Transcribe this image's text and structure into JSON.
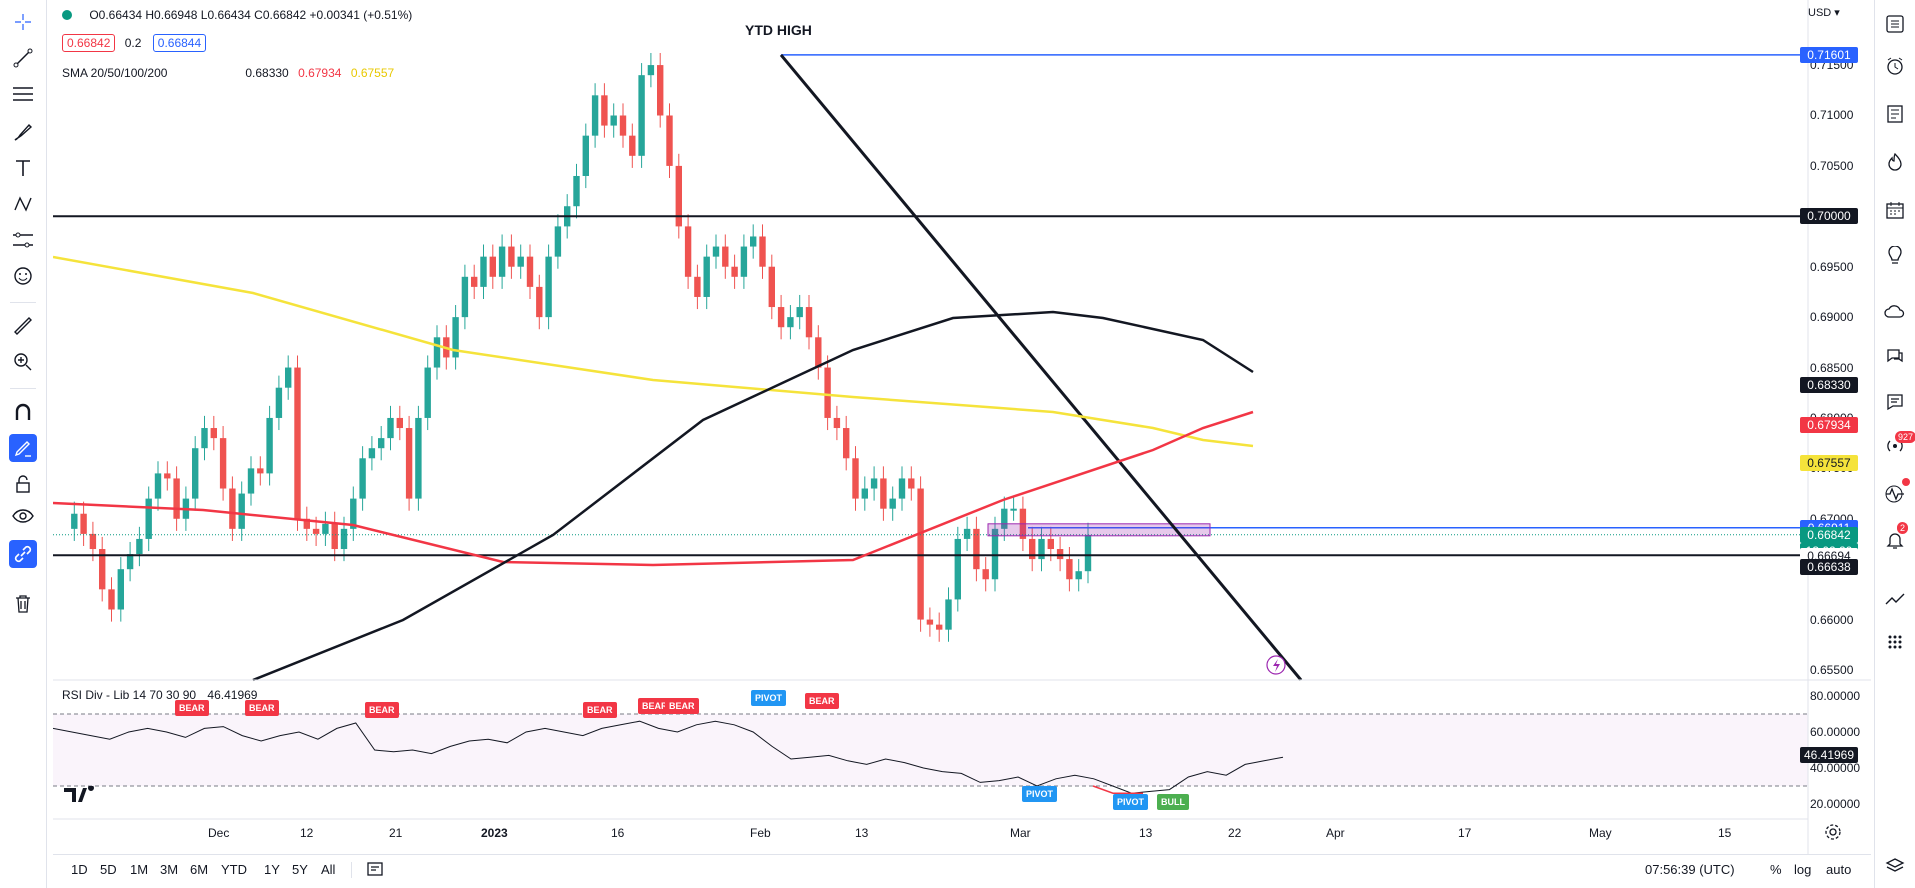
{
  "legend": {
    "ohlc": "O0.66434 H0.66948 L0.66434 C0.66842 +0.00341 (+0.51%)",
    "sell_price": "0.66842",
    "spread": "0.2",
    "buy_price": "0.66844",
    "sma_label": "SMA 20/50/100/200",
    "sma_values": [
      "0.68330",
      "0.67934",
      "0.67557"
    ]
  },
  "annotation": {
    "ytd_high": "YTD HIGH"
  },
  "currency": "USD",
  "price_axis": [
    "0.71500",
    "0.71000",
    "0.70500",
    "0.70000",
    "0.69500",
    "0.69000",
    "0.68500",
    "0.68000",
    "0.67500",
    "0.67000",
    "0.66500",
    "0.66000",
    "0.65500"
  ],
  "price_tags": [
    {
      "label": "0.71601",
      "color": "#2962ff"
    },
    {
      "label": "0.70000",
      "color": "#131722"
    },
    {
      "label": "0.68330",
      "color": "#131722"
    },
    {
      "label": "0.67934",
      "color": "#f23645"
    },
    {
      "label": "0.67557",
      "color": "#f5e33b",
      "text_color": "#131722"
    },
    {
      "label": "0.66911",
      "color": "#2962ff"
    },
    {
      "label": "0.66842",
      "color": "#089981"
    },
    {
      "label": "13:02:20",
      "color": "#089981"
    },
    {
      "label": "0.66694",
      "color": "#ffffff",
      "text_color": "#131722"
    },
    {
      "label": "0.66638",
      "color": "#131722"
    }
  ],
  "rsi": {
    "label": "RSI Div - Lib 14 70 30 90",
    "value": "46.41969",
    "axis": [
      "80.00000",
      "60.00000",
      "40.00000",
      "20.00000"
    ],
    "tag": "46.41969",
    "signals": [
      {
        "text": "BEAR",
        "color": "#f23645"
      },
      {
        "text": "BEAR",
        "color": "#f23645"
      },
      {
        "text": "BEAR",
        "color": "#f23645"
      },
      {
        "text": "BEAR",
        "color": "#f23645"
      },
      {
        "text": "BEAR",
        "color": "#f23645"
      },
      {
        "text": "BEAR",
        "color": "#f23645"
      },
      {
        "text": "PIVOT",
        "color": "#2196f3"
      },
      {
        "text": "BEAR",
        "color": "#f23645"
      },
      {
        "text": "PIVOT",
        "color": "#2196f3"
      },
      {
        "text": "PIVOT",
        "color": "#2196f3"
      },
      {
        "text": "BULL",
        "color": "#4caf50"
      }
    ]
  },
  "time_axis": [
    "Dec",
    "12",
    "21",
    "2023",
    "16",
    "Feb",
    "13",
    "Mar",
    "13",
    "22",
    "Apr",
    "17",
    "May",
    "15"
  ],
  "timeframes": [
    "1D",
    "5D",
    "1M",
    "3M",
    "6M",
    "YTD",
    "1Y",
    "5Y",
    "All"
  ],
  "clock": "07:56:39 (UTC)",
  "scale_options": [
    "%",
    "log",
    "auto"
  ],
  "right_badges": {
    "alerts": "927",
    "notifications": "2"
  },
  "colors": {
    "up": "#26a69a",
    "down": "#ef5350",
    "sma20": "#131722",
    "sma50": "#f23645",
    "sma200": "#f5e33b",
    "accent": "#2962ff"
  }
}
